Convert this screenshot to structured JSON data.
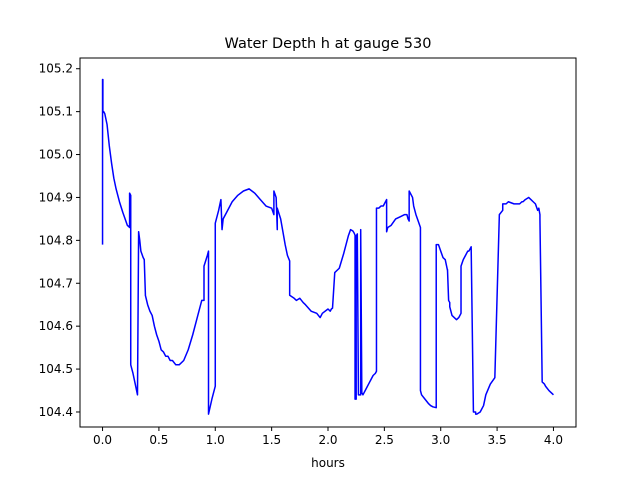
{
  "chart_data": {
    "type": "line",
    "title": "Water Depth h at gauge 530",
    "xlabel": "hours",
    "ylabel": "",
    "xlim": [
      -0.2,
      4.2
    ],
    "ylim": [
      104.365,
      105.225
    ],
    "xticks": [
      0.0,
      0.5,
      1.0,
      1.5,
      2.0,
      2.5,
      3.0,
      3.5,
      4.0
    ],
    "xtick_labels": [
      "0.0",
      "0.5",
      "1.0",
      "1.5",
      "2.0",
      "2.5",
      "3.0",
      "3.5",
      "4.0"
    ],
    "yticks": [
      104.4,
      104.5,
      104.6,
      104.7,
      104.8,
      104.9,
      105.0,
      105.1,
      105.2
    ],
    "ytick_labels": [
      "104.4",
      "104.5",
      "104.6",
      "104.7",
      "104.8",
      "104.9",
      "105.0",
      "105.1",
      "105.2"
    ],
    "grid": false,
    "series": [
      {
        "color": "#0000ff",
        "x": [
          0.0,
          0.0,
          0.003,
          0.003,
          0.01,
          0.02,
          0.04,
          0.06,
          0.08,
          0.1,
          0.12,
          0.15,
          0.18,
          0.2,
          0.22,
          0.24,
          0.24,
          0.25,
          0.25,
          0.27,
          0.29,
          0.31,
          0.32,
          0.33,
          0.34,
          0.36,
          0.37,
          0.38,
          0.38,
          0.4,
          0.42,
          0.44,
          0.46,
          0.48,
          0.5,
          0.52,
          0.54,
          0.56,
          0.58,
          0.6,
          0.62,
          0.65,
          0.68,
          0.72,
          0.76,
          0.8,
          0.84,
          0.88,
          0.9,
          0.9,
          0.93,
          0.94,
          0.94,
          0.97,
          1.0,
          1.0,
          1.03,
          1.05,
          1.06,
          1.07,
          1.1,
          1.15,
          1.2,
          1.25,
          1.3,
          1.35,
          1.4,
          1.45,
          1.5,
          1.52,
          1.52,
          1.54,
          1.55,
          1.55,
          1.58,
          1.6,
          1.62,
          1.64,
          1.66,
          1.66,
          1.7,
          1.72,
          1.75,
          1.78,
          1.8,
          1.85,
          1.9,
          1.93,
          1.95,
          2.0,
          2.02,
          2.03,
          2.04,
          2.06,
          2.1,
          2.14,
          2.18,
          2.2,
          2.22,
          2.23,
          2.24,
          2.24,
          2.25,
          2.25,
          2.26,
          2.27,
          2.29,
          2.29,
          2.3,
          2.31,
          2.34,
          2.37,
          2.4,
          2.42,
          2.43,
          2.43,
          2.45,
          2.47,
          2.49,
          2.5,
          2.51,
          2.52,
          2.52,
          2.53,
          2.56,
          2.6,
          2.64,
          2.68,
          2.7,
          2.71,
          2.72,
          2.72,
          2.75,
          2.76,
          2.78,
          2.8,
          2.82,
          2.82,
          2.83,
          2.86,
          2.89,
          2.91,
          2.93,
          2.96,
          2.96,
          2.98,
          3.0,
          3.02,
          3.04,
          3.06,
          3.06,
          3.07,
          3.08,
          3.08,
          3.1,
          3.12,
          3.14,
          3.16,
          3.18,
          3.18,
          3.2,
          3.22,
          3.24,
          3.25,
          3.26,
          3.27,
          3.29,
          3.31,
          3.31,
          3.32,
          3.35,
          3.38,
          3.4,
          3.44,
          3.48,
          3.52,
          3.55,
          3.55,
          3.58,
          3.6,
          3.65,
          3.7,
          3.72,
          3.73,
          3.75,
          3.78,
          3.8,
          3.82,
          3.84,
          3.86,
          3.87,
          3.88,
          3.88,
          3.9,
          3.92,
          3.93,
          3.96,
          4.0
        ],
        "y": [
          104.79,
          105.175,
          105.175,
          105.1,
          105.1,
          105.095,
          105.07,
          105.02,
          104.98,
          104.945,
          104.92,
          104.89,
          104.865,
          104.85,
          104.835,
          104.83,
          104.91,
          104.905,
          104.51,
          104.49,
          104.465,
          104.44,
          104.82,
          104.8,
          104.775,
          104.76,
          104.755,
          104.675,
          104.672,
          104.65,
          104.635,
          104.625,
          104.6,
          104.58,
          104.565,
          104.545,
          104.54,
          104.53,
          104.53,
          104.52,
          104.52,
          104.51,
          104.51,
          104.52,
          104.545,
          104.58,
          104.62,
          104.66,
          104.66,
          104.74,
          104.765,
          104.775,
          104.395,
          104.43,
          104.46,
          104.84,
          104.87,
          104.895,
          104.825,
          104.85,
          104.865,
          104.89,
          104.905,
          104.915,
          104.92,
          104.91,
          104.895,
          104.88,
          104.875,
          104.86,
          104.915,
          104.9,
          104.825,
          104.875,
          104.85,
          104.82,
          104.79,
          104.765,
          104.752,
          104.672,
          104.665,
          104.66,
          104.665,
          104.655,
          104.65,
          104.635,
          104.63,
          104.62,
          104.63,
          104.64,
          104.635,
          104.64,
          104.642,
          104.725,
          104.735,
          104.77,
          104.81,
          104.825,
          104.822,
          104.818,
          104.812,
          104.43,
          104.43,
          104.81,
          104.815,
          104.44,
          104.44,
          104.825,
          104.445,
          104.44,
          104.455,
          104.47,
          104.485,
          104.49,
          104.495,
          104.875,
          104.875,
          104.88,
          104.88,
          104.885,
          104.89,
          104.895,
          104.82,
          104.83,
          104.835,
          104.85,
          104.855,
          104.86,
          104.86,
          104.85,
          104.845,
          104.915,
          104.9,
          104.88,
          104.86,
          104.845,
          104.83,
          104.45,
          104.44,
          104.43,
          104.42,
          104.415,
          104.412,
          104.41,
          104.79,
          104.79,
          104.775,
          104.76,
          104.755,
          104.73,
          104.732,
          104.66,
          104.655,
          104.645,
          104.625,
          104.62,
          104.615,
          104.62,
          104.63,
          104.74,
          104.755,
          104.765,
          104.775,
          104.775,
          104.78,
          104.785,
          104.4,
          104.4,
          104.395,
          104.395,
          104.4,
          104.415,
          104.44,
          104.465,
          104.48,
          104.86,
          104.87,
          104.885,
          104.885,
          104.89,
          104.885,
          104.885,
          104.89,
          104.89,
          104.895,
          104.9,
          104.895,
          104.89,
          104.885,
          104.87,
          104.875,
          104.86,
          104.85,
          104.47,
          104.465,
          104.46,
          104.45,
          104.44
        ]
      }
    ]
  }
}
